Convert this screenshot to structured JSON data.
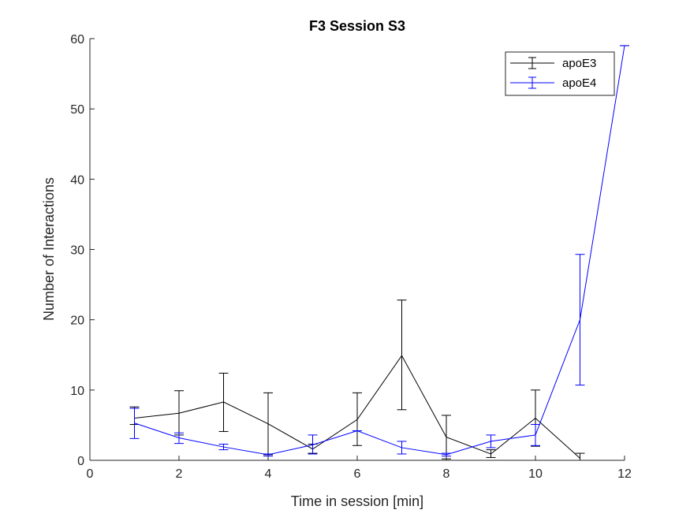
{
  "chart_data": {
    "type": "line",
    "title": "F3 Session S3",
    "xlabel": "Time in session [min]",
    "ylabel": "Number of Interactions",
    "xlim": [
      0,
      12
    ],
    "ylim": [
      0,
      60
    ],
    "x_ticks": [
      "0",
      "2",
      "4",
      "6",
      "8",
      "10",
      "12"
    ],
    "y_ticks": [
      "0",
      "10",
      "20",
      "30",
      "40",
      "50",
      "60"
    ],
    "grid": false,
    "legend_position": "top-right",
    "error_bars": true,
    "series": [
      {
        "name": "apoE3",
        "color": "#000000",
        "points": [
          {
            "x": 1,
            "y": 6.0,
            "lo": 5.1,
            "hi": 7.6
          },
          {
            "x": 2,
            "y": 6.7,
            "lo": 3.6,
            "hi": 9.9
          },
          {
            "x": 3,
            "y": 8.3,
            "lo": 4.1,
            "hi": 12.4
          },
          {
            "x": 4,
            "y": 5.2,
            "lo": 0.8,
            "hi": 9.6
          },
          {
            "x": 5,
            "y": 1.6,
            "lo": 1.0,
            "hi": 2.3
          },
          {
            "x": 6,
            "y": 5.8,
            "lo": 2.1,
            "hi": 9.6
          },
          {
            "x": 7,
            "y": 14.9,
            "lo": 7.2,
            "hi": 22.8
          },
          {
            "x": 8,
            "y": 3.3,
            "lo": 0.2,
            "hi": 6.4
          },
          {
            "x": 9,
            "y": 0.9,
            "lo": 0.4,
            "hi": 1.5
          },
          {
            "x": 10,
            "y": 6.0,
            "lo": 2.0,
            "hi": 10.0
          },
          {
            "x": 11,
            "y": 0.3,
            "lo": 0.0,
            "hi": 1.0
          }
        ]
      },
      {
        "name": "apoE4",
        "color": "#0000ff",
        "points": [
          {
            "x": 1,
            "y": 5.3,
            "lo": 3.1,
            "hi": 7.4
          },
          {
            "x": 2,
            "y": 3.2,
            "lo": 2.4,
            "hi": 3.9
          },
          {
            "x": 3,
            "y": 1.9,
            "lo": 1.5,
            "hi": 2.3
          },
          {
            "x": 4,
            "y": 0.8,
            "lo": 0.6,
            "hi": 0.9
          },
          {
            "x": 5,
            "y": 2.2,
            "lo": 0.9,
            "hi": 3.6
          },
          {
            "x": 6,
            "y": 4.2,
            "lo": 4.2,
            "hi": 4.2
          },
          {
            "x": 7,
            "y": 1.8,
            "lo": 0.9,
            "hi": 2.7
          },
          {
            "x": 8,
            "y": 0.8,
            "lo": 0.6,
            "hi": 1.0
          },
          {
            "x": 9,
            "y": 2.7,
            "lo": 1.8,
            "hi": 3.6
          },
          {
            "x": 10,
            "y": 3.6,
            "lo": 2.1,
            "hi": 5.1
          },
          {
            "x": 11,
            "y": 20.0,
            "lo": 10.7,
            "hi": 29.3
          },
          {
            "x": 12,
            "y": 59.0,
            "lo": 59.0,
            "hi": 59.0
          }
        ]
      }
    ]
  }
}
